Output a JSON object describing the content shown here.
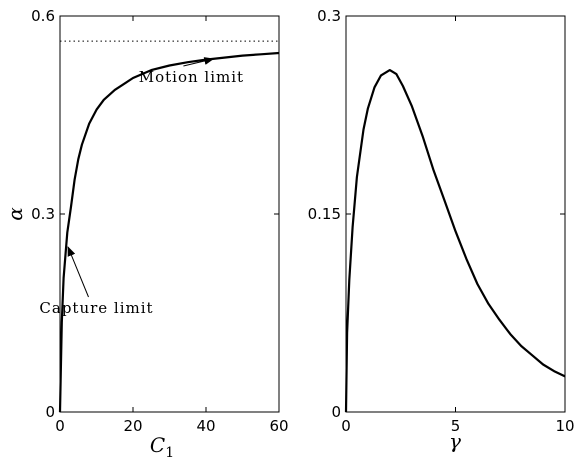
{
  "chart_data": [
    {
      "type": "line",
      "xlabel": "C",
      "xlabel_subscript": "1",
      "ylabel": "α",
      "xlim": [
        0,
        60
      ],
      "ylim": [
        0,
        0.6
      ],
      "xticks": [
        "0",
        "20",
        "40",
        "60"
      ],
      "yticks": [
        "0",
        "0.3",
        "0.6"
      ],
      "grid": false,
      "series": [
        {
          "x": [
            0,
            0.5,
            1,
            2,
            3,
            4,
            5,
            6,
            8,
            10,
            12,
            15,
            20,
            25,
            30,
            35,
            40,
            45,
            50,
            55,
            60
          ],
          "y": [
            0,
            0.136,
            0.203,
            0.272,
            0.311,
            0.352,
            0.383,
            0.405,
            0.437,
            0.458,
            0.473,
            0.488,
            0.506,
            0.518,
            0.525,
            0.53,
            0.534,
            0.537,
            0.54,
            0.542,
            0.544
          ],
          "style": "solid"
        },
        {
          "x": [
            0,
            60
          ],
          "y": [
            0.562,
            0.562
          ],
          "style": "dotted"
        }
      ],
      "annotations": [
        {
          "text": "Motion limit",
          "x": 36,
          "y": 0.5,
          "arrow_to_x": 42,
          "arrow_to_y": 0.535
        },
        {
          "text": "Capture limit",
          "x": 10,
          "y": 0.15,
          "arrow_to_x": 2.2,
          "arrow_to_y": 0.25
        }
      ]
    },
    {
      "type": "line",
      "xlabel": "γ",
      "ylabel": "",
      "xlim": [
        0,
        10
      ],
      "ylim": [
        0,
        0.3
      ],
      "xticks": [
        "0",
        "5",
        "10"
      ],
      "yticks": [
        "0",
        "0.15",
        "0.3"
      ],
      "grid": false,
      "series": [
        {
          "x": [
            0,
            0.05,
            0.15,
            0.3,
            0.5,
            0.8,
            1.0,
            1.3,
            1.6,
            2.0,
            2.3,
            2.6,
            3.0,
            3.5,
            4.0,
            4.5,
            5.0,
            5.5,
            6.0,
            6.5,
            7.0,
            7.5,
            8.0,
            8.5,
            9.0,
            9.5,
            10.0
          ],
          "y": [
            0,
            0.06,
            0.1,
            0.14,
            0.178,
            0.214,
            0.23,
            0.246,
            0.255,
            0.259,
            0.256,
            0.247,
            0.232,
            0.209,
            0.183,
            0.16,
            0.137,
            0.116,
            0.097,
            0.082,
            0.07,
            0.059,
            0.05,
            0.043,
            0.036,
            0.031,
            0.027
          ],
          "style": "solid"
        }
      ]
    }
  ]
}
